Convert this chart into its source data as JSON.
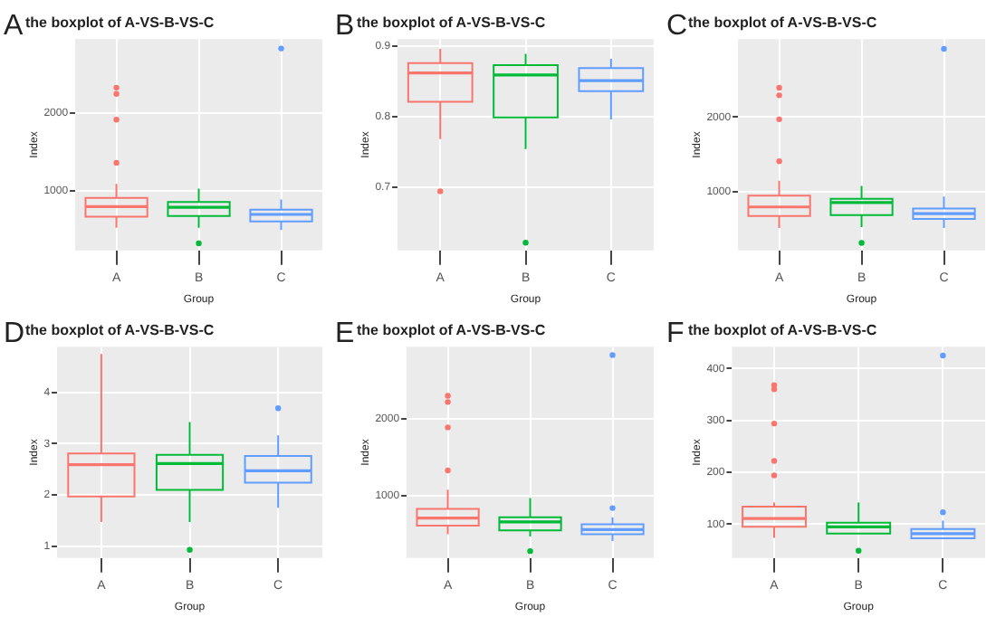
{
  "chart_data": [
    {
      "type": "box",
      "title": "the boxplot of A-VS-B-VS-C",
      "xlabel": "Group",
      "ylabel": "Index",
      "annotations": [
        "A"
      ],
      "grid": true,
      "categories": [
        "A",
        "B",
        "C"
      ],
      "colors": [
        "#f8766d",
        "#00ba38",
        "#619cff"
      ],
      "ylim": [
        240,
        2940
      ],
      "yticks": [
        1000,
        2000
      ],
      "boxes": [
        {
          "low": 530,
          "q1": 670,
          "median": 800,
          "q3": 910,
          "high": 1090,
          "outliers": [
            1360,
            1910,
            2240,
            2320
          ]
        },
        {
          "low": 530,
          "q1": 680,
          "median": 790,
          "q3": 860,
          "high": 1030,
          "outliers": [
            330
          ]
        },
        {
          "low": 500,
          "q1": 610,
          "median": 700,
          "q3": 760,
          "high": 890,
          "outliers": [
            2820
          ]
        }
      ]
    },
    {
      "type": "box",
      "title": "the boxplot of A-VS-B-VS-C",
      "xlabel": "Group",
      "ylabel": "Index",
      "annotations": [
        "B"
      ],
      "grid": true,
      "categories": [
        "A",
        "B",
        "C"
      ],
      "colors": [
        "#f8766d",
        "#00ba38",
        "#619cff"
      ],
      "ylim": [
        0.61,
        0.91
      ],
      "yticks": [
        0.7,
        0.8,
        0.9
      ],
      "boxes": [
        {
          "low": 0.768,
          "q1": 0.821,
          "median": 0.862,
          "q3": 0.876,
          "high": 0.896,
          "outliers": [
            0.694
          ]
        },
        {
          "low": 0.754,
          "q1": 0.799,
          "median": 0.859,
          "q3": 0.873,
          "high": 0.889,
          "outliers": [
            0.621
          ]
        },
        {
          "low": 0.796,
          "q1": 0.836,
          "median": 0.851,
          "q3": 0.869,
          "high": 0.882
        }
      ]
    },
    {
      "type": "box",
      "title": "the boxplot of A-VS-B-VS-C",
      "xlabel": "Group",
      "ylabel": "Index",
      "annotations": [
        "C"
      ],
      "grid": true,
      "categories": [
        "A",
        "B",
        "C"
      ],
      "colors": [
        "#f8766d",
        "#00ba38",
        "#619cff"
      ],
      "ylim": [
        220,
        3040
      ],
      "yticks": [
        1000,
        2000
      ],
      "boxes": [
        {
          "low": 520,
          "q1": 680,
          "median": 800,
          "q3": 950,
          "high": 1150,
          "outliers": [
            1410,
            1970,
            2290,
            2390
          ]
        },
        {
          "low": 530,
          "q1": 690,
          "median": 860,
          "q3": 910,
          "high": 1080,
          "outliers": [
            320
          ]
        },
        {
          "low": 520,
          "q1": 640,
          "median": 710,
          "q3": 780,
          "high": 940,
          "outliers": [
            2910
          ]
        }
      ]
    },
    {
      "type": "box",
      "title": "the boxplot of A-VS-B-VS-C",
      "xlabel": "Group",
      "ylabel": "Index",
      "annotations": [
        "D"
      ],
      "grid": true,
      "categories": [
        "A",
        "B",
        "C"
      ],
      "colors": [
        "#f8766d",
        "#00ba38",
        "#619cff"
      ],
      "ylim": [
        0.77,
        4.89
      ],
      "yticks": [
        1,
        2,
        3,
        4
      ],
      "boxes": [
        {
          "low": 1.47,
          "q1": 1.97,
          "median": 2.59,
          "q3": 2.81,
          "high": 4.75
        },
        {
          "low": 1.47,
          "q1": 2.1,
          "median": 2.61,
          "q3": 2.78,
          "high": 3.42,
          "outliers": [
            0.93
          ]
        },
        {
          "low": 1.75,
          "q1": 2.24,
          "median": 2.47,
          "q3": 2.76,
          "high": 3.16,
          "outliers": [
            3.69
          ]
        }
      ]
    },
    {
      "type": "box",
      "title": "the boxplot of A-VS-B-VS-C",
      "xlabel": "Group",
      "ylabel": "Index",
      "annotations": [
        "E"
      ],
      "grid": true,
      "categories": [
        "A",
        "B",
        "C"
      ],
      "colors": [
        "#f8766d",
        "#00ba38",
        "#619cff"
      ],
      "ylim": [
        190,
        2940
      ],
      "yticks": [
        1000,
        2000
      ],
      "boxes": [
        {
          "low": 500,
          "q1": 610,
          "median": 710,
          "q3": 830,
          "high": 1080,
          "outliers": [
            1330,
            1890,
            2220,
            2300
          ]
        },
        {
          "low": 470,
          "q1": 550,
          "median": 660,
          "q3": 720,
          "high": 970,
          "outliers": [
            280
          ]
        },
        {
          "low": 410,
          "q1": 500,
          "median": 560,
          "q3": 630,
          "high": 720,
          "outliers": [
            840,
            2830
          ]
        }
      ]
    },
    {
      "type": "box",
      "title": "the boxplot of A-VS-B-VS-C",
      "xlabel": "Group",
      "ylabel": "Index",
      "annotations": [
        "F"
      ],
      "grid": true,
      "categories": [
        "A",
        "B",
        "C"
      ],
      "colors": [
        "#f8766d",
        "#00ba38",
        "#619cff"
      ],
      "ylim": [
        35,
        442
      ],
      "yticks": [
        100,
        200,
        300,
        400
      ],
      "boxes": [
        {
          "low": 74,
          "q1": 95,
          "median": 111,
          "q3": 134,
          "high": 142,
          "outliers": [
            194,
            222,
            294,
            360,
            368
          ]
        },
        {
          "low": 82,
          "q1": 82,
          "median": 95,
          "q3": 103,
          "high": 142,
          "outliers": [
            49
          ]
        },
        {
          "low": 73,
          "q1": 73,
          "median": 82,
          "q3": 91,
          "high": 107,
          "outliers": [
            123,
            425
          ]
        }
      ]
    }
  ]
}
